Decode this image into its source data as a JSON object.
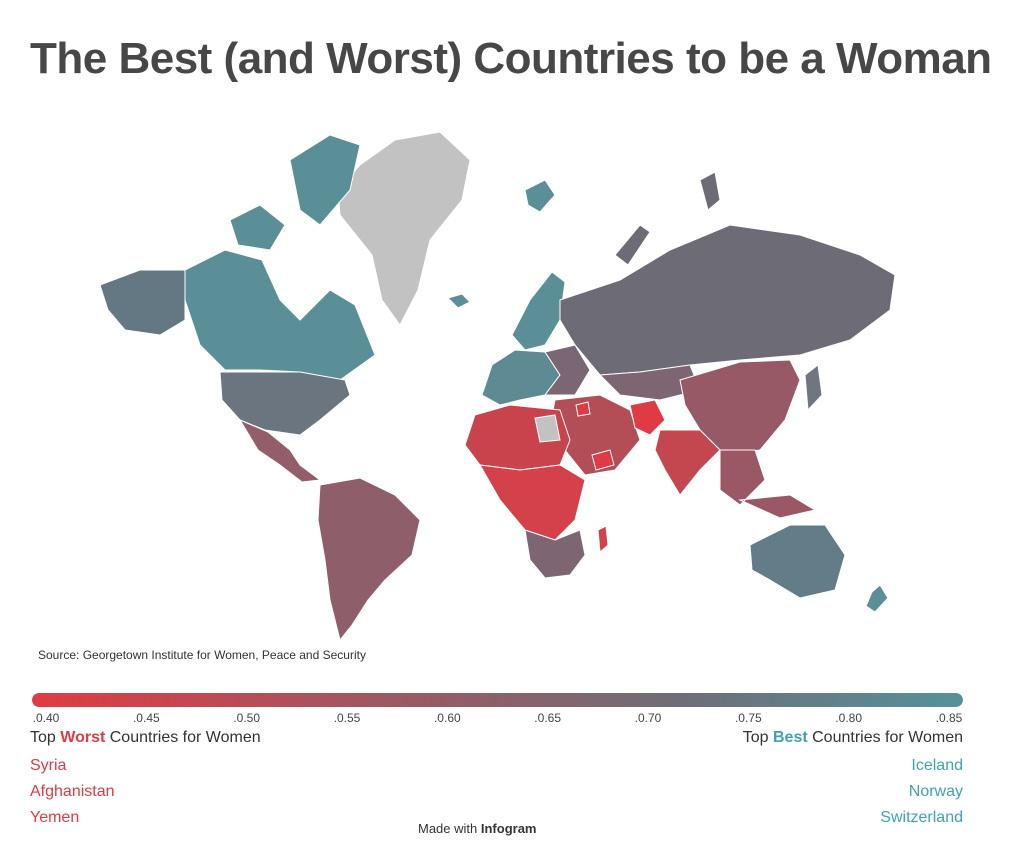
{
  "title": "The Best (and Worst) Countries to be a Woman",
  "source": "Source: Georgetown Institute for Women, Peace and Security",
  "legend": {
    "ticks": [
      ".0.40",
      ".0.45",
      ".0.50",
      ".0.55",
      ".0.60",
      ".0.65",
      ".0.70",
      ".0.75",
      ".0.80",
      ".0.85"
    ],
    "min": 0.4,
    "max": 0.85,
    "colors": [
      "#e03b44",
      "#a5555f",
      "#6e6e78",
      "#56919a"
    ]
  },
  "worst": {
    "prefix": "Top ",
    "highlight": "Worst",
    "suffix": " Countries for Women",
    "countries": [
      "Syria",
      "Afghanistan",
      "Yemen"
    ]
  },
  "best": {
    "prefix": "Top ",
    "highlight": "Best",
    "suffix": " Countries for Women",
    "countries": [
      "Iceland",
      "Norway",
      "Switzerland"
    ]
  },
  "credit": {
    "prefix": "Made with ",
    "brand": "Infogram"
  },
  "colors": {
    "worst_red": "#e03b44",
    "best_teal": "#3fa3ad",
    "no_data": "#c4c4c4",
    "mid_gray": "#6e6e78"
  }
}
